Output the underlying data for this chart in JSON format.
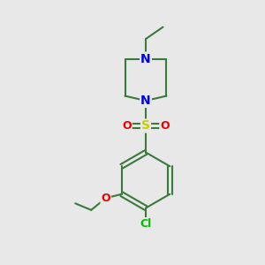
{
  "background_color": "#e8e8e8",
  "bond_color": "#3a7a3a",
  "bond_width": 1.5,
  "atom_colors": {
    "N": "#0000ee",
    "O": "#ee0000",
    "S": "#cccc00",
    "Cl": "#00bb00",
    "C": "#3a7a3a"
  },
  "figsize": [
    3.0,
    3.0
  ],
  "dpi": 100
}
